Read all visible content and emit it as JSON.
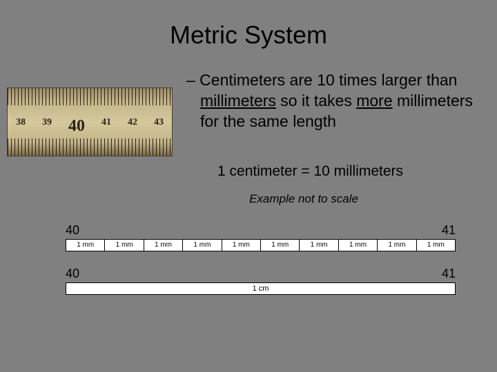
{
  "title": "Metric System",
  "bullet_prefix": "– ",
  "bullet_text_html": "Centimeters are 10 times larger than millimeters so it takes more millimeters for the same length",
  "equation": "1 centimeter = 10 millimeters",
  "example_caption": "Example not to scale",
  "ruler_photo": {
    "numbers": [
      "38",
      "39",
      "40",
      "41",
      "42",
      "43"
    ]
  },
  "diagram": {
    "left_label": "40",
    "right_label": "41",
    "mm_label": "1 mm",
    "mm_count": 10,
    "cm_label": "1 cm",
    "colors": {
      "bar_bg": "#ffffff",
      "bar_border": "#000000",
      "text": "#000000"
    }
  },
  "styling": {
    "background_color": "#808080",
    "title_fontsize": 36,
    "body_fontsize": 23,
    "text_color": "#000000"
  }
}
